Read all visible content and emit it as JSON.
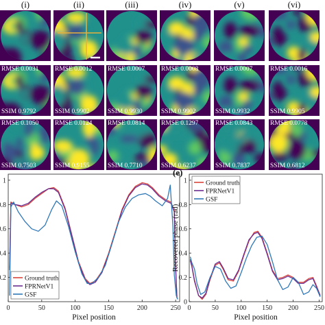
{
  "columns": [
    {
      "label": "(i)"
    },
    {
      "label": "(ii)"
    },
    {
      "label": "(iii)"
    },
    {
      "label": "(iv)"
    },
    {
      "label": "(v)"
    },
    {
      "label": "(vi)"
    }
  ],
  "rows": [
    {
      "role": "reference",
      "cells": [
        {
          "rmse": "",
          "ssim": ""
        },
        {
          "rmse": "",
          "ssim": ""
        },
        {
          "rmse": "",
          "ssim": ""
        },
        {
          "rmse": "",
          "ssim": ""
        },
        {
          "rmse": "",
          "ssim": ""
        },
        {
          "rmse": "",
          "ssim": ""
        }
      ]
    },
    {
      "role": "fprnet",
      "cells": [
        {
          "rmse": "RMSE 0.0031",
          "ssim": "SSIM 0.9792"
        },
        {
          "rmse": "RMSE 0.0012",
          "ssim": "SSIM 0.9902"
        },
        {
          "rmse": "RMSE 0.0007",
          "ssim": "SSIM 0.9930"
        },
        {
          "rmse": "RMSE 0.0008",
          "ssim": "SSIM 0.9902"
        },
        {
          "rmse": "RMSE 0.0007",
          "ssim": "SSIM 0.9932"
        },
        {
          "rmse": "RMSE 0.0016",
          "ssim": "SSIM 0.9905"
        }
      ]
    },
    {
      "role": "gsf",
      "cells": [
        {
          "rmse": "RMSE 0.1050",
          "ssim": "SSIM 0.7503"
        },
        {
          "rmse": "RMSE 0.0124",
          "ssim": "SSIM 0.9155"
        },
        {
          "rmse": "RMSE 0.0814",
          "ssim": "SSIM 0.7710"
        },
        {
          "rmse": "RMSE 0.1297",
          "ssim": "SSIM 0.6237"
        },
        {
          "rmse": "RMSE 0.0843",
          "ssim": "SSIM 0.7837"
        },
        {
          "rmse": "RMSE 0.0778",
          "ssim": "SSIM 0.6812"
        }
      ]
    }
  ],
  "colormap": [
    "#440154",
    "#3b528b",
    "#21918c",
    "#5ec962",
    "#fde725"
  ],
  "chart_data": [
    {
      "type": "line",
      "panel_label": "",
      "xlabel": "Pixel position",
      "ylabel": "",
      "xlim": [
        0,
        256
      ],
      "ylim": [
        0,
        1.05
      ],
      "xticks": [
        0,
        50,
        100,
        150,
        200,
        250
      ],
      "yticks": [
        0.2,
        0.4,
        0.6,
        0.8,
        1
      ],
      "legend": "bottom-left",
      "series": [
        {
          "name": "Ground truth",
          "color": "#d9443a",
          "x": [
            2,
            4,
            10,
            20,
            30,
            40,
            50,
            60,
            68,
            75,
            85,
            95,
            105,
            115,
            122,
            130,
            140,
            150,
            160,
            170,
            180,
            190,
            200,
            208,
            215,
            225,
            235,
            243,
            248,
            250,
            252
          ],
          "y": [
            0.28,
            0.82,
            0.8,
            0.78,
            0.8,
            0.85,
            0.89,
            0.93,
            0.94,
            0.91,
            0.77,
            0.55,
            0.33,
            0.19,
            0.15,
            0.17,
            0.25,
            0.4,
            0.58,
            0.76,
            0.88,
            0.95,
            0.98,
            0.97,
            0.94,
            0.88,
            0.84,
            0.82,
            0.75,
            0.3,
            0.03
          ]
        },
        {
          "name": "FPRNetV1",
          "color": "#6a2c91",
          "x": [
            2,
            4,
            10,
            20,
            30,
            40,
            50,
            60,
            68,
            75,
            85,
            95,
            105,
            115,
            122,
            130,
            140,
            150,
            160,
            170,
            180,
            190,
            200,
            208,
            215,
            225,
            235,
            243,
            248,
            250,
            252
          ],
          "y": [
            0.26,
            0.81,
            0.8,
            0.79,
            0.81,
            0.86,
            0.9,
            0.93,
            0.93,
            0.9,
            0.76,
            0.54,
            0.32,
            0.18,
            0.14,
            0.16,
            0.24,
            0.39,
            0.57,
            0.75,
            0.87,
            0.94,
            0.97,
            0.96,
            0.93,
            0.87,
            0.83,
            0.81,
            0.74,
            0.28,
            0.03
          ]
        },
        {
          "name": "GSF",
          "color": "#2f78b7",
          "x": [
            2,
            4,
            8,
            15,
            25,
            35,
            45,
            55,
            65,
            72,
            80,
            90,
            100,
            110,
            118,
            125,
            135,
            145,
            155,
            165,
            175,
            185,
            195,
            205,
            212,
            220,
            230,
            238,
            242,
            246,
            248,
            251,
            253
          ],
          "y": [
            0.05,
            0.78,
            0.82,
            0.74,
            0.66,
            0.6,
            0.58,
            0.63,
            0.76,
            0.83,
            0.79,
            0.62,
            0.41,
            0.23,
            0.15,
            0.15,
            0.2,
            0.3,
            0.48,
            0.66,
            0.78,
            0.85,
            0.88,
            0.89,
            0.87,
            0.83,
            0.79,
            0.85,
            0.96,
            0.62,
            0.22,
            0.05,
            0.02
          ]
        }
      ]
    },
    {
      "type": "line",
      "panel_label": "(e)",
      "xlabel": "Pixel position",
      "ylabel": "Recovered phase (rad)",
      "xlim": [
        0,
        256
      ],
      "ylim": [
        0,
        1.05
      ],
      "xticks": [
        0,
        50,
        100,
        150,
        200,
        250
      ],
      "yticks": [
        0,
        0.2,
        0.4,
        0.6,
        0.8,
        1
      ],
      "legend": "top-left",
      "series": [
        {
          "name": "Ground truth",
          "color": "#d9443a",
          "x": [
            2,
            5,
            10,
            18,
            25,
            32,
            40,
            50,
            58,
            65,
            75,
            85,
            95,
            105,
            115,
            125,
            132,
            140,
            150,
            160,
            170,
            180,
            190,
            200,
            210,
            220,
            230,
            238,
            245,
            252
          ],
          "y": [
            0.35,
            0.3,
            0.18,
            0.05,
            0.02,
            0.06,
            0.18,
            0.3,
            0.32,
            0.27,
            0.18,
            0.17,
            0.25,
            0.38,
            0.5,
            0.57,
            0.58,
            0.53,
            0.4,
            0.26,
            0.19,
            0.2,
            0.22,
            0.2,
            0.16,
            0.16,
            0.19,
            0.2,
            0.13,
            0.05
          ]
        },
        {
          "name": "FPRNetV1",
          "color": "#6a2c91",
          "x": [
            2,
            5,
            10,
            18,
            25,
            32,
            40,
            50,
            58,
            65,
            75,
            85,
            95,
            105,
            115,
            125,
            132,
            140,
            150,
            160,
            170,
            180,
            190,
            200,
            210,
            220,
            230,
            238,
            245,
            252
          ],
          "y": [
            0.34,
            0.29,
            0.17,
            0.05,
            0.03,
            0.07,
            0.19,
            0.31,
            0.33,
            0.28,
            0.19,
            0.18,
            0.26,
            0.39,
            0.51,
            0.56,
            0.57,
            0.52,
            0.39,
            0.25,
            0.18,
            0.19,
            0.21,
            0.19,
            0.15,
            0.15,
            0.18,
            0.19,
            0.12,
            0.05
          ]
        },
        {
          "name": "GSF",
          "color": "#2f78b7",
          "x": [
            2,
            5,
            10,
            15,
            22,
            30,
            40,
            50,
            60,
            70,
            80,
            90,
            100,
            110,
            120,
            130,
            140,
            150,
            160,
            170,
            180,
            190,
            200,
            210,
            220,
            230,
            238,
            245,
            252
          ],
          "y": [
            0.37,
            0.32,
            0.27,
            0.15,
            0.06,
            0.08,
            0.2,
            0.29,
            0.27,
            0.17,
            0.11,
            0.13,
            0.24,
            0.36,
            0.46,
            0.53,
            0.54,
            0.47,
            0.33,
            0.18,
            0.1,
            0.12,
            0.2,
            0.16,
            0.06,
            0.08,
            0.14,
            0.11,
            0.04
          ]
        }
      ]
    }
  ]
}
